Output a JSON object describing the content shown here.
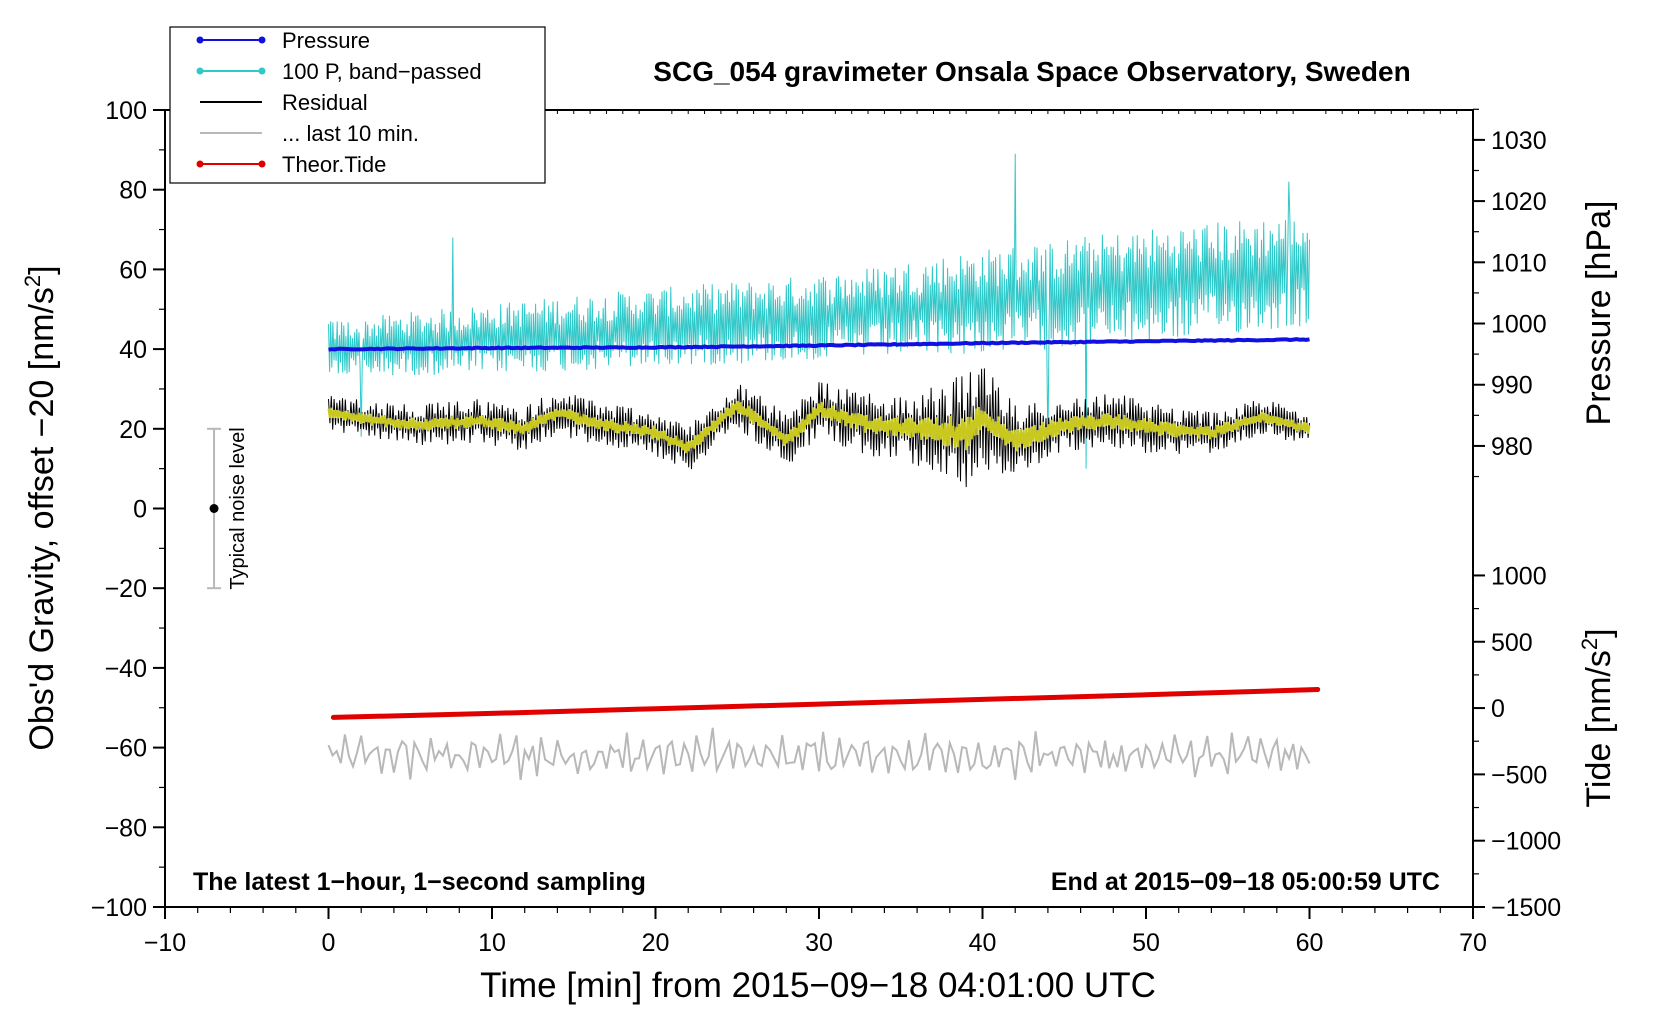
{
  "chart_data": {
    "type": "line",
    "title": "SCG_054 gravimeter Onsala Space Observatory, Sweden",
    "xlabel": "Time [min] from 2015−09−18 04:01:00 UTC",
    "ylabel_main": "Obs'd Gravity, offset −20 [nm/s",
    "ylabel_main_sup": "2",
    "ylabel_main_close": "]",
    "ylabel_pressure": "Pressure [hPa]",
    "ylabel_tide": "Tide [nm/s",
    "ylabel_tide_sup": "2",
    "ylabel_tide_close": "]",
    "xlim": [
      -10,
      70
    ],
    "ylim": [
      -100,
      100
    ],
    "x_ticks": [
      -10,
      0,
      10,
      20,
      30,
      40,
      50,
      60,
      70
    ],
    "x_tick_labels": [
      "−10",
      "0",
      "10",
      "20",
      "30",
      "40",
      "50",
      "60",
      "70"
    ],
    "y_ticks": [
      100,
      80,
      60,
      40,
      20,
      0,
      -20,
      -40,
      -60,
      -80,
      -100
    ],
    "y_tick_labels": [
      "100",
      "80",
      "60",
      "40",
      "20",
      "0",
      "−20",
      "−40",
      "−60",
      "−80",
      "−100"
    ],
    "pressure_ticks": [
      1030,
      1020,
      1010,
      1000,
      990,
      980
    ],
    "pressure_tick_labels": [
      "1030",
      "1020",
      "1010",
      "1000",
      "990",
      "980"
    ],
    "pressure_axis_map": {
      "p1": 1030,
      "g1": 92.5,
      "p2": 980,
      "g2": 15.7
    },
    "tide_ticks": [
      1000,
      500,
      0,
      -500,
      -1000,
      -1500
    ],
    "tide_tick_labels": [
      "1000",
      "500",
      "0",
      "−500",
      "−1000",
      "−1500"
    ],
    "tide_axis_map": {
      "t1": 1000,
      "g1": -16.8,
      "t2": -1500,
      "g2": -100
    },
    "annotation_left": "The latest 1−hour, 1−second sampling",
    "annotation_right": "End at 2015−09−18 05:00:59 UTC",
    "noise_label": "Typical noise level",
    "noise_bar": {
      "x": -7,
      "y_center": 0,
      "y_low": -20,
      "y_high": 20
    },
    "legend": [
      {
        "label": "Pressure",
        "color": "#1010e0",
        "marker": true
      },
      {
        "label": "100 P, band−passed",
        "color": "#30c8c8",
        "marker": true
      },
      {
        "label": "Residual",
        "color": "#000000",
        "marker": false
      },
      {
        "label": "... last 10 min.",
        "color": "#b8b8b8",
        "marker": false
      },
      {
        "label": "Theor.Tide",
        "color": "#e00000",
        "marker": true
      }
    ],
    "series": [
      {
        "name": "Pressure",
        "axis": "pressure",
        "color": "#1010e0",
        "width": 4,
        "x": [
          0,
          10,
          20,
          30,
          40,
          50,
          60
        ],
        "values": [
          995.8,
          996.0,
          996.1,
          996.4,
          996.8,
          997.1,
          997.4
        ]
      },
      {
        "name": "100 P, band-passed",
        "axis": "main",
        "color": "#30c8c8",
        "width": 1,
        "x_start": 0,
        "x_end": 60,
        "baseline_x": [
          0,
          15,
          30,
          40,
          50,
          60
        ],
        "baseline_y": [
          40,
          44,
          48,
          52,
          56,
          60
        ],
        "amplitude": [
          6,
          8,
          9,
          11,
          12,
          12
        ],
        "spikes": [
          {
            "x": 42,
            "y": 89
          },
          {
            "x": 7.6,
            "y": 68
          },
          {
            "x": 58.7,
            "y": 82
          },
          {
            "x": 44,
            "y": 15
          },
          {
            "x": 2,
            "y": 18
          },
          {
            "x": 46.3,
            "y": 10
          }
        ]
      },
      {
        "name": "Residual",
        "axis": "main",
        "color": "#000000",
        "width": 1,
        "x_start": 0,
        "x_end": 60,
        "smooth_x": [
          0,
          3,
          6,
          9,
          12,
          14,
          17,
          20,
          22,
          25,
          28,
          30,
          33,
          36,
          39,
          40,
          42,
          45,
          48,
          51,
          54,
          57,
          60
        ],
        "smooth_y": [
          24,
          22,
          21,
          22,
          20,
          24,
          21,
          19,
          15,
          26,
          17,
          25,
          21,
          20,
          19,
          23,
          17,
          21,
          22,
          20,
          19,
          23,
          20
        ],
        "amp_x": [
          0,
          10,
          20,
          30,
          36,
          39,
          42,
          46,
          50,
          56,
          60
        ],
        "amp_y": [
          4,
          5,
          5,
          6,
          8,
          13,
          8,
          6,
          6,
          4,
          4
        ]
      },
      {
        "name": "Residual smoothed",
        "axis": "main",
        "color": "#c8c81e",
        "width": 2,
        "x_start": 0,
        "x_end": 60
      },
      {
        "name": "Theor.Tide",
        "axis": "tide",
        "color": "#e00000",
        "width": 5,
        "x": [
          0.3,
          10,
          20,
          30,
          40,
          50,
          60.5
        ],
        "values": [
          -70,
          -40,
          -5,
          30,
          65,
          100,
          140
        ]
      },
      {
        "name": "... last 10 min.",
        "axis": "main",
        "color": "#b8b8b8",
        "width": 2,
        "x_start": 0,
        "x_end": 60,
        "center": -62,
        "amplitude": 5
      }
    ]
  }
}
